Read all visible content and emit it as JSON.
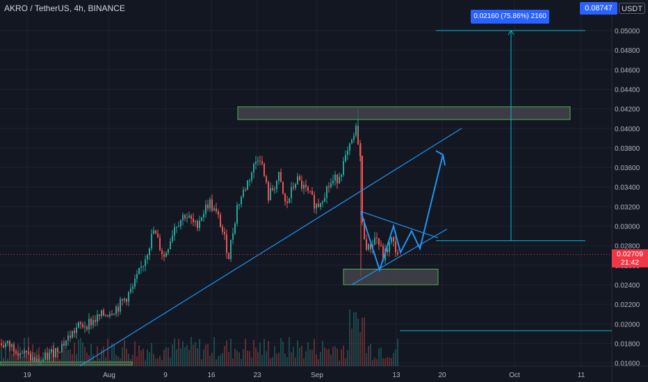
{
  "header": {
    "symbol_title": "AKRO / TetherUS, 4h, BINANCE",
    "unit_label": "USDT",
    "top_price_label": "0.08747"
  },
  "measure_label": "0.02160 (75.86%) 2160",
  "last_price": {
    "value": "0.02709",
    "countdown": "21:42",
    "color": "#f23645"
  },
  "colors": {
    "background": "#131722",
    "up": "#26a69a",
    "down": "#ef5350",
    "drawing": "#2196f3",
    "measure": "#00bcd4",
    "zone_fill": "#4a4a52",
    "zone_border": "#4caf50"
  },
  "chart_data": {
    "type": "candlestick",
    "x_ticks": [
      "19",
      "Aug",
      "9",
      "16",
      "23",
      "Sep",
      "13",
      "20",
      "Oct",
      "11"
    ],
    "y_ticks": [
      "0.05000",
      "0.04800",
      "0.04600",
      "0.04400",
      "0.04200",
      "0.04000",
      "0.03800",
      "0.03600",
      "0.03400",
      "0.03200",
      "0.03000",
      "0.02800",
      "0.02600",
      "0.02400",
      "0.02200",
      "0.02000",
      "0.01800",
      "0.01600"
    ],
    "ylim": [
      0.0158,
      0.0535
    ],
    "price_path": [
      [
        0,
        0.018
      ],
      [
        20,
        0.0176
      ],
      [
        40,
        0.0166
      ],
      [
        55,
        0.016
      ],
      [
        70,
        0.0168
      ],
      [
        90,
        0.018
      ],
      [
        110,
        0.0196
      ],
      [
        130,
        0.0202
      ],
      [
        150,
        0.021
      ],
      [
        170,
        0.0218
      ],
      [
        190,
        0.0236
      ],
      [
        205,
        0.0262
      ],
      [
        220,
        0.0295
      ],
      [
        235,
        0.0268
      ],
      [
        250,
        0.03
      ],
      [
        265,
        0.0312
      ],
      [
        280,
        0.03
      ],
      [
        300,
        0.0325
      ],
      [
        315,
        0.0305
      ],
      [
        328,
        0.027
      ],
      [
        340,
        0.032
      ],
      [
        355,
        0.0345
      ],
      [
        372,
        0.0375
      ],
      [
        385,
        0.033
      ],
      [
        400,
        0.035
      ],
      [
        410,
        0.032
      ],
      [
        425,
        0.0348
      ],
      [
        440,
        0.0335
      ],
      [
        455,
        0.032
      ],
      [
        470,
        0.034
      ],
      [
        485,
        0.035
      ],
      [
        500,
        0.0375
      ],
      [
        512,
        0.04
      ],
      [
        518,
        0.0365
      ],
      [
        520,
        0.03
      ],
      [
        528,
        0.0275
      ],
      [
        540,
        0.029
      ],
      [
        550,
        0.0268
      ],
      [
        562,
        0.0285
      ],
      [
        572,
        0.0271
      ]
    ],
    "zones": [
      {
        "from_index": 342,
        "to_index": 820,
        "top": 0.0422,
        "bottom": 0.0409
      },
      {
        "from_index": 494,
        "to_index": 630,
        "top": 0.0256,
        "bottom": 0.024
      },
      {
        "from_index": 0,
        "to_index": 190,
        "top": 0.0161,
        "bottom": 0.0158
      }
    ],
    "measure": {
      "from": 0.0285,
      "to": 0.05,
      "x_index": 735
    },
    "target_level": 0.0193
  }
}
